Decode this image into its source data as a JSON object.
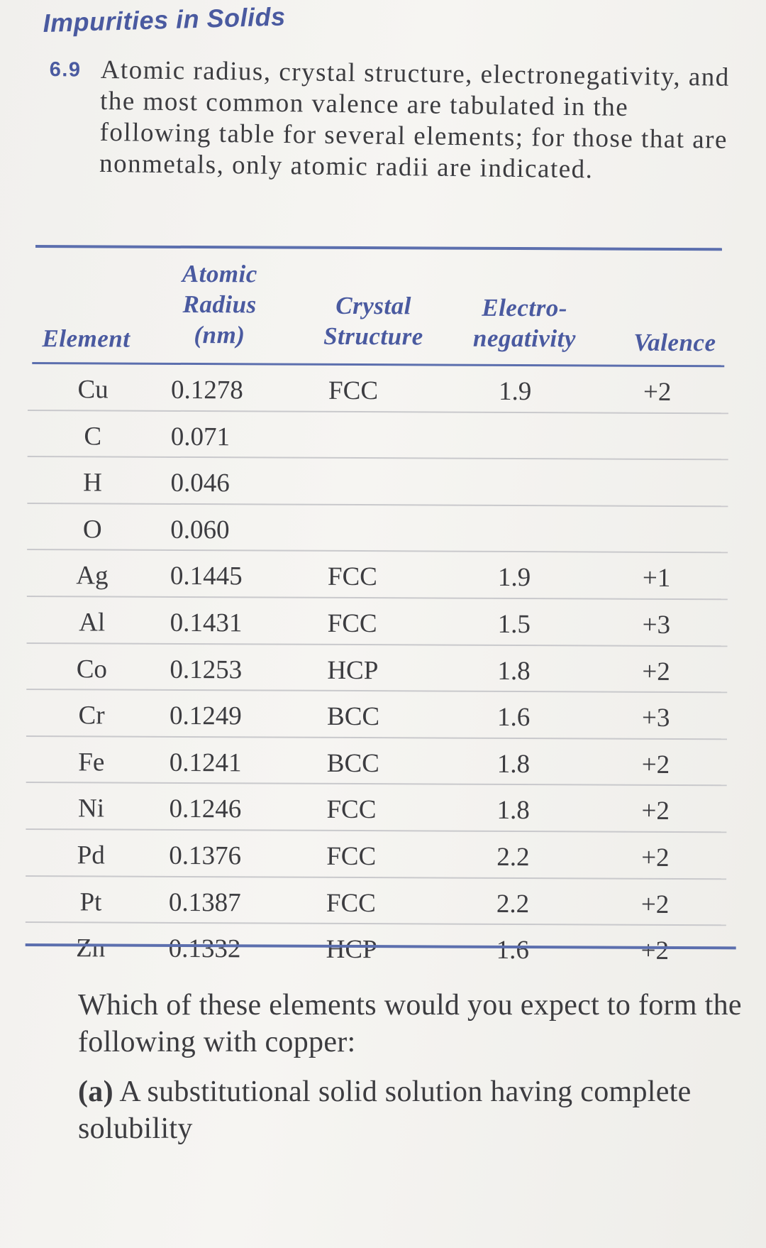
{
  "section_heading": "Impurities in Solids",
  "problem": {
    "number": "6.9",
    "text": "Atomic radius, crystal structure, electronegativity, and the most common valence are tabulated in the following table for several elements; for those that are nonmetals, only atomic radii are indicated."
  },
  "table": {
    "headers": {
      "element": "Element",
      "atomic_radius": "Atomic Radius (nm)",
      "crystal_structure": "Crystal Structure",
      "electronegativity": "Electro- negativity",
      "valence": "Valence"
    },
    "rows": [
      {
        "element": "Cu",
        "radius": "0.1278",
        "structure": "FCC",
        "en": "1.9",
        "valence": "+2"
      },
      {
        "element": "C",
        "radius": "0.071",
        "structure": "",
        "en": "",
        "valence": ""
      },
      {
        "element": "H",
        "radius": "0.046",
        "structure": "",
        "en": "",
        "valence": ""
      },
      {
        "element": "O",
        "radius": "0.060",
        "structure": "",
        "en": "",
        "valence": ""
      },
      {
        "element": "Ag",
        "radius": "0.1445",
        "structure": "FCC",
        "en": "1.9",
        "valence": "+1"
      },
      {
        "element": "Al",
        "radius": "0.1431",
        "structure": "FCC",
        "en": "1.5",
        "valence": "+3"
      },
      {
        "element": "Co",
        "radius": "0.1253",
        "structure": "HCP",
        "en": "1.8",
        "valence": "+2"
      },
      {
        "element": "Cr",
        "radius": "0.1249",
        "structure": "BCC",
        "en": "1.6",
        "valence": "+3"
      },
      {
        "element": "Fe",
        "radius": "0.1241",
        "structure": "BCC",
        "en": "1.8",
        "valence": "+2"
      },
      {
        "element": "Ni",
        "radius": "0.1246",
        "structure": "FCC",
        "en": "1.8",
        "valence": "+2"
      },
      {
        "element": "Pd",
        "radius": "0.1376",
        "structure": "FCC",
        "en": "2.2",
        "valence": "+2"
      },
      {
        "element": "Pt",
        "radius": "0.1387",
        "structure": "FCC",
        "en": "2.2",
        "valence": "+2"
      },
      {
        "element": "Zn",
        "radius": "0.1332",
        "structure": "HCP",
        "en": "1.6",
        "valence": "+2"
      }
    ]
  },
  "question": {
    "intro": "Which of these elements would you expect to form the following with copper:",
    "part_a_label": "(a)",
    "part_a_text": "A substitutional solid solution having complete solubility"
  },
  "colors": {
    "accent": "#4a5aa0",
    "rule": "#5c6fae",
    "text": "#3c3c40"
  }
}
